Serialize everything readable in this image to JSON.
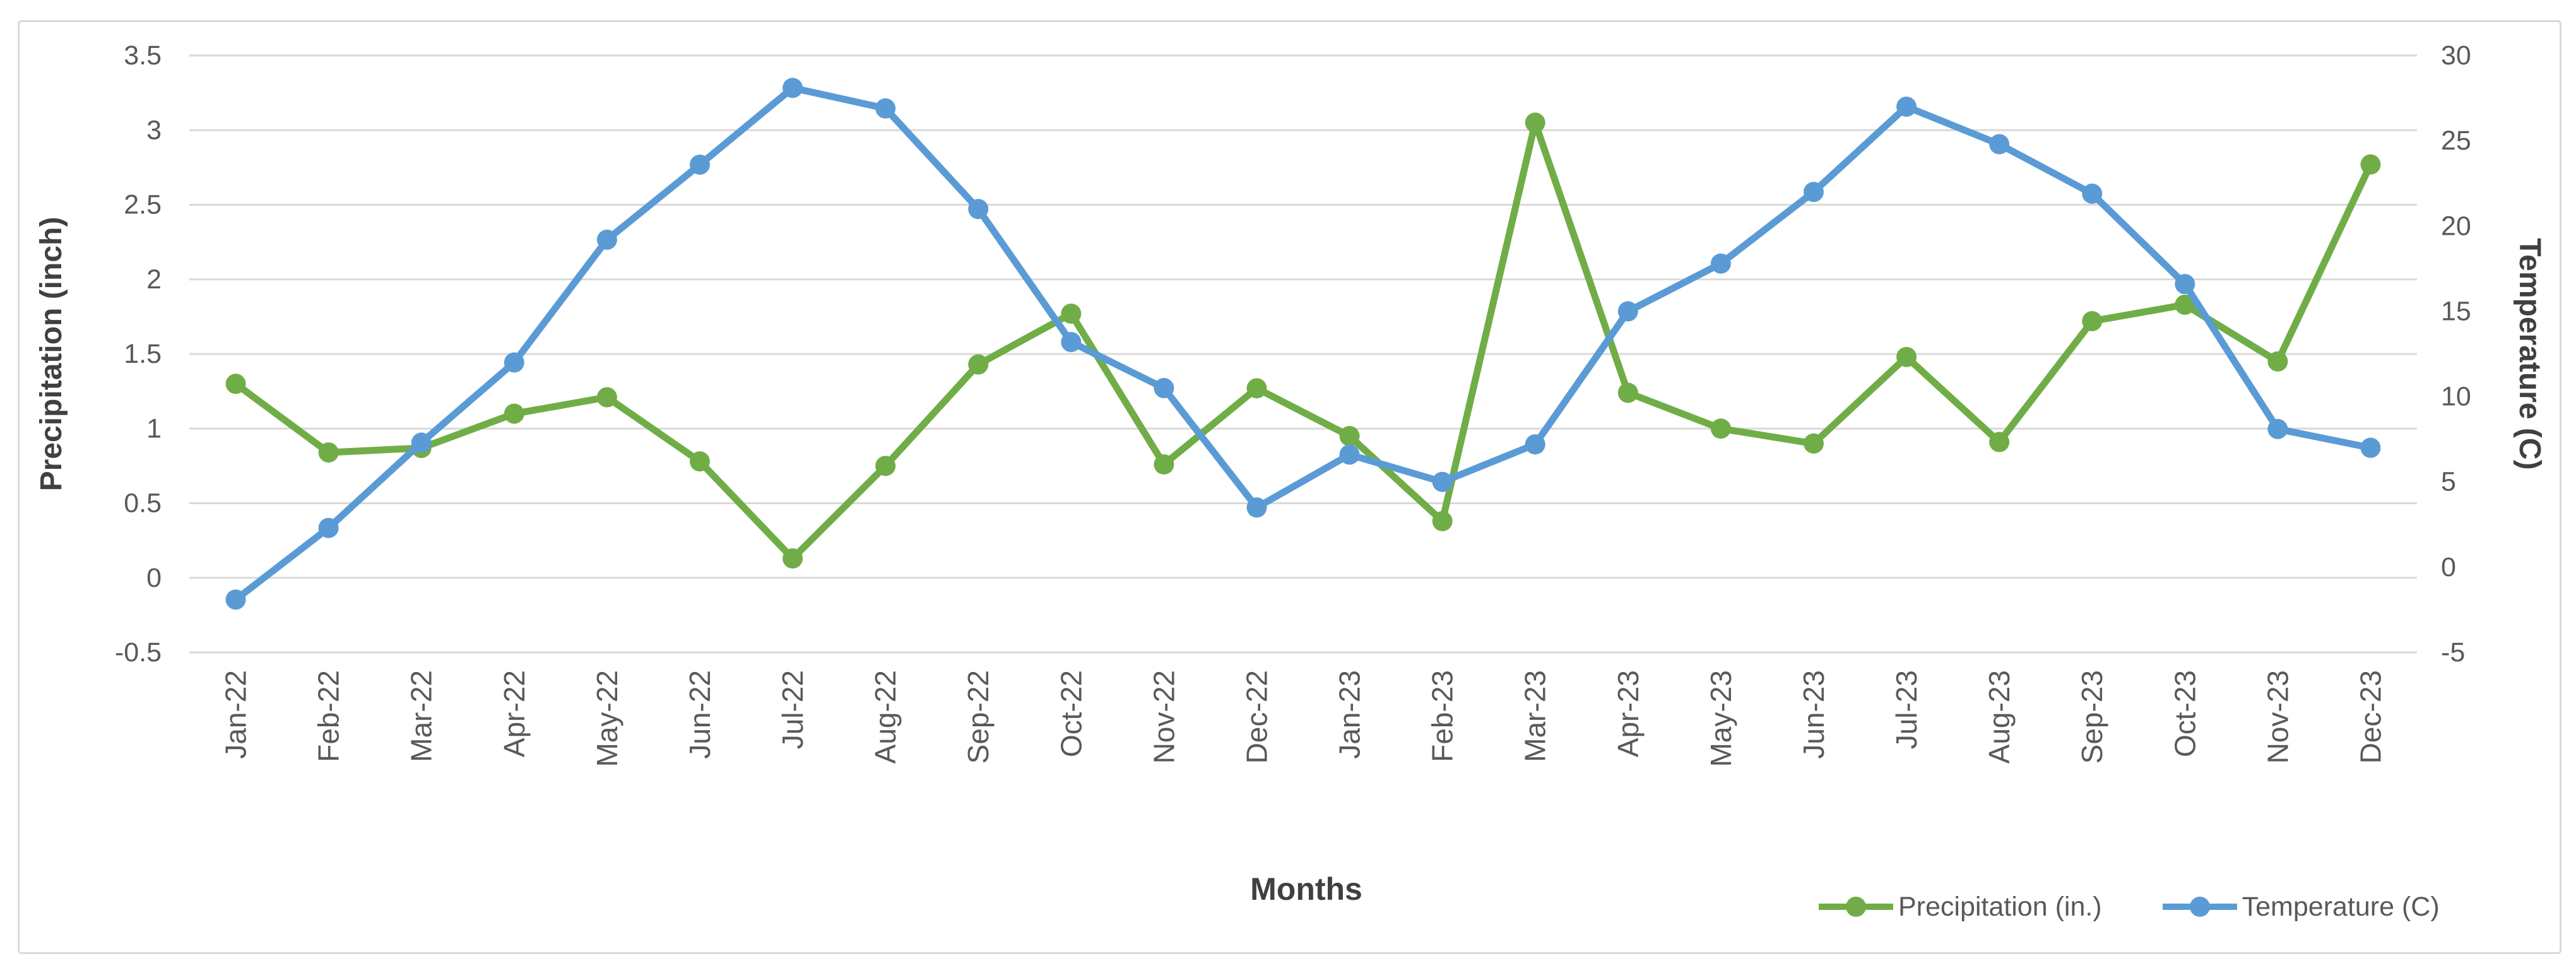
{
  "chart_data": {
    "type": "line",
    "title": "",
    "categories": [
      "Jan-22",
      "Feb-22",
      "Mar-22",
      "Apr-22",
      "May-22",
      "Jun-22",
      "Jul-22",
      "Aug-22",
      "Sep-22",
      "Oct-22",
      "Nov-22",
      "Dec-22",
      "Jan-23",
      "Feb-23",
      "Mar-23",
      "Apr-23",
      "May-23",
      "Jun-23",
      "Jul-23",
      "Aug-23",
      "Sep-23",
      "Oct-23",
      "Nov-23",
      "Dec-23"
    ],
    "series": [
      {
        "name": "Precipitation (in.)",
        "axis": "left",
        "color": "#70AD47",
        "values": [
          1.3,
          0.84,
          0.87,
          1.1,
          1.21,
          0.78,
          0.13,
          0.75,
          1.43,
          1.77,
          0.76,
          1.27,
          0.95,
          0.38,
          3.05,
          1.24,
          1.0,
          0.9,
          1.48,
          0.91,
          1.72,
          1.83,
          1.45,
          2.77
        ]
      },
      {
        "name": "Temperature (C)",
        "axis": "right",
        "color": "#5B9BD5",
        "values": [
          -1.9,
          2.3,
          7.3,
          12.0,
          19.2,
          23.6,
          28.1,
          26.9,
          21.0,
          13.2,
          10.5,
          3.5,
          6.6,
          5.0,
          7.2,
          15.0,
          17.8,
          22.0,
          27.0,
          24.8,
          21.9,
          16.6,
          8.1,
          7.0
        ]
      }
    ],
    "left_axis": {
      "title": "Precipitation (inch)",
      "min": -0.5,
      "max": 3.5,
      "step": 0.5,
      "tick_labels": [
        "3.5",
        "3",
        "2.5",
        "2",
        "1.5",
        "1",
        "0.5",
        "0",
        "-0.5"
      ]
    },
    "right_axis": {
      "title": "Temperature (C)",
      "min": -5,
      "max": 30,
      "step": 5,
      "tick_labels": [
        "30",
        "25",
        "20",
        "15",
        "10",
        "5",
        "0",
        "-5"
      ]
    },
    "x_axis": {
      "title": "Months"
    },
    "legend": {
      "position": "bottom-right"
    },
    "grid": true,
    "style": {
      "gridline_color": "#D9D9D9",
      "tick_text_color": "#595959",
      "title_text_color": "#404040",
      "border_color": "#D9D9D9",
      "background": "#FFFFFF"
    }
  }
}
